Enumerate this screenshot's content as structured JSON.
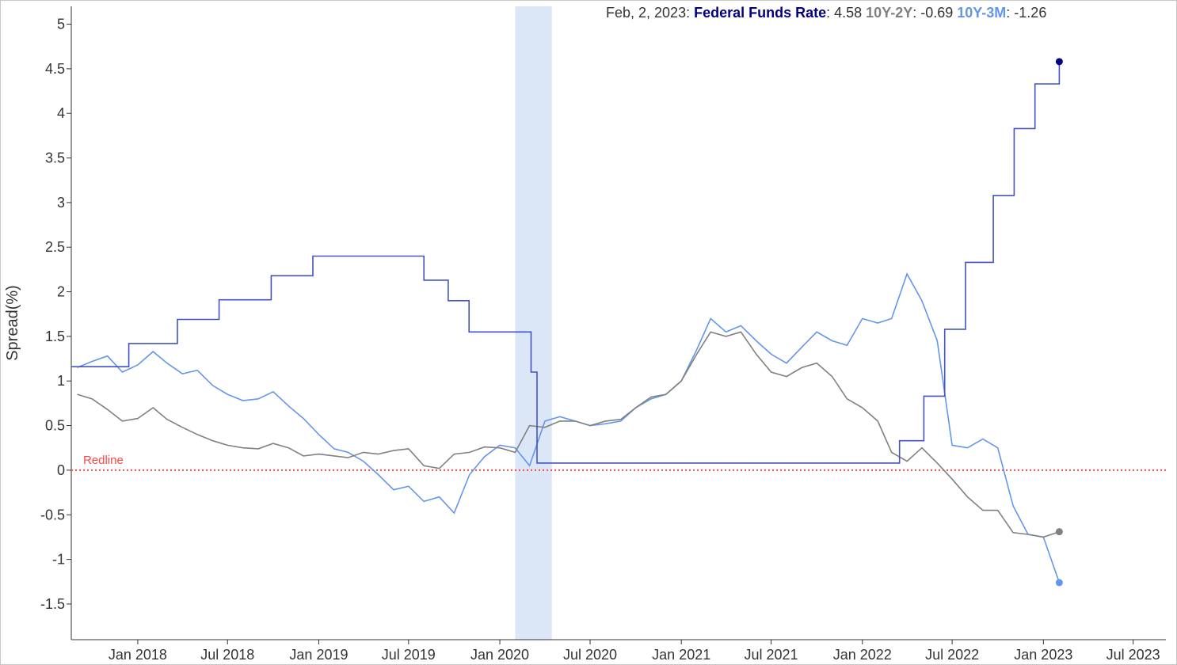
{
  "readout": {
    "date": "Feb, 2, 2023",
    "items": [
      {
        "label": "Federal Funds Rate",
        "value": "4.58",
        "color": "#000080"
      },
      {
        "label": "10Y-2Y",
        "value": "-0.69",
        "color": "#808080"
      },
      {
        "label": "10Y-3M",
        "value": "-1.26",
        "color": "#6495ed"
      }
    ]
  },
  "chart_data": {
    "type": "line",
    "ylabel": "Spread(%)",
    "xlabel": "",
    "ylim": [
      -1.9,
      5.2
    ],
    "xlim": [
      "2017-08-20",
      "2023-09-05"
    ],
    "yticks": [
      -1.5,
      -1,
      -0.5,
      0,
      0.5,
      1,
      1.5,
      2,
      2.5,
      3,
      3.5,
      4,
      4.5,
      5
    ],
    "xticks": [
      {
        "label": "Jan 2018",
        "date": "2018-01-01"
      },
      {
        "label": "Jul 2018",
        "date": "2018-07-01"
      },
      {
        "label": "Jan 2019",
        "date": "2019-01-01"
      },
      {
        "label": "Jul 2019",
        "date": "2019-07-01"
      },
      {
        "label": "Jan 2020",
        "date": "2020-01-01"
      },
      {
        "label": "Jul 2020",
        "date": "2020-07-01"
      },
      {
        "label": "Jan 2021",
        "date": "2021-01-01"
      },
      {
        "label": "Jul 2021",
        "date": "2021-07-01"
      },
      {
        "label": "Jan 2022",
        "date": "2022-01-01"
      },
      {
        "label": "Jul 2022",
        "date": "2022-07-01"
      },
      {
        "label": "Jan 2023",
        "date": "2023-01-01"
      },
      {
        "label": "Jul 2023",
        "date": "2023-07-01"
      }
    ],
    "grid": false,
    "recession_band": {
      "start": "2020-02-01",
      "end": "2020-04-15",
      "color": "#dbe6f6"
    },
    "reference_line": {
      "label": "Redline",
      "y": 0,
      "color": "#ff4444",
      "style": "dotted"
    },
    "series": [
      {
        "name": "10Y-3M",
        "color": "#6495ed",
        "x": [
          "2017-09-01",
          "2017-10-01",
          "2017-11-01",
          "2017-12-01",
          "2018-01-01",
          "2018-02-01",
          "2018-03-01",
          "2018-04-01",
          "2018-05-01",
          "2018-06-01",
          "2018-07-01",
          "2018-08-01",
          "2018-09-01",
          "2018-10-01",
          "2018-11-01",
          "2018-12-01",
          "2019-01-01",
          "2019-02-01",
          "2019-03-01",
          "2019-04-01",
          "2019-05-01",
          "2019-06-01",
          "2019-07-01",
          "2019-08-01",
          "2019-09-01",
          "2019-10-01",
          "2019-11-01",
          "2019-12-01",
          "2020-01-01",
          "2020-02-01",
          "2020-03-01",
          "2020-04-01",
          "2020-05-01",
          "2020-06-01",
          "2020-07-01",
          "2020-08-01",
          "2020-09-01",
          "2020-10-01",
          "2020-11-01",
          "2020-12-01",
          "2021-01-01",
          "2021-02-01",
          "2021-03-01",
          "2021-04-01",
          "2021-05-01",
          "2021-06-01",
          "2021-07-01",
          "2021-08-01",
          "2021-09-01",
          "2021-10-01",
          "2021-11-01",
          "2021-12-01",
          "2022-01-01",
          "2022-02-01",
          "2022-03-01",
          "2022-04-01",
          "2022-05-01",
          "2022-06-01",
          "2022-07-01",
          "2022-08-01",
          "2022-09-01",
          "2022-10-01",
          "2022-11-01",
          "2022-12-01",
          "2023-01-01",
          "2023-02-02"
        ],
        "values": [
          1.15,
          1.22,
          1.28,
          1.1,
          1.18,
          1.33,
          1.2,
          1.08,
          1.12,
          0.95,
          0.85,
          0.78,
          0.8,
          0.88,
          0.72,
          0.58,
          0.4,
          0.24,
          0.2,
          0.1,
          -0.05,
          -0.22,
          -0.18,
          -0.35,
          -0.3,
          -0.48,
          -0.05,
          0.15,
          0.28,
          0.25,
          0.05,
          0.55,
          0.6,
          0.55,
          0.5,
          0.52,
          0.55,
          0.7,
          0.8,
          0.85,
          1.0,
          1.35,
          1.7,
          1.55,
          1.62,
          1.45,
          1.3,
          1.2,
          1.38,
          1.55,
          1.45,
          1.4,
          1.7,
          1.65,
          1.7,
          2.2,
          1.9,
          1.45,
          0.28,
          0.25,
          0.35,
          0.25,
          -0.4,
          -0.72,
          -0.75,
          -1.26
        ]
      },
      {
        "name": "10Y-2Y",
        "color": "#808080",
        "x": [
          "2017-09-01",
          "2017-10-01",
          "2017-11-01",
          "2017-12-01",
          "2018-01-01",
          "2018-02-01",
          "2018-03-01",
          "2018-04-01",
          "2018-05-01",
          "2018-06-01",
          "2018-07-01",
          "2018-08-01",
          "2018-09-01",
          "2018-10-01",
          "2018-11-01",
          "2018-12-01",
          "2019-01-01",
          "2019-02-01",
          "2019-03-01",
          "2019-04-01",
          "2019-05-01",
          "2019-06-01",
          "2019-07-01",
          "2019-08-01",
          "2019-09-01",
          "2019-10-01",
          "2019-11-01",
          "2019-12-01",
          "2020-01-01",
          "2020-02-01",
          "2020-03-01",
          "2020-04-01",
          "2020-05-01",
          "2020-06-01",
          "2020-07-01",
          "2020-08-01",
          "2020-09-01",
          "2020-10-01",
          "2020-11-01",
          "2020-12-01",
          "2021-01-01",
          "2021-02-01",
          "2021-03-01",
          "2021-04-01",
          "2021-05-01",
          "2021-06-01",
          "2021-07-01",
          "2021-08-01",
          "2021-09-01",
          "2021-10-01",
          "2021-11-01",
          "2021-12-01",
          "2022-01-01",
          "2022-02-01",
          "2022-03-01",
          "2022-04-01",
          "2022-05-01",
          "2022-06-01",
          "2022-07-01",
          "2022-08-01",
          "2022-09-01",
          "2022-10-01",
          "2022-11-01",
          "2022-12-01",
          "2023-01-01",
          "2023-02-02"
        ],
        "values": [
          0.85,
          0.8,
          0.68,
          0.55,
          0.58,
          0.7,
          0.57,
          0.48,
          0.4,
          0.33,
          0.28,
          0.25,
          0.24,
          0.3,
          0.25,
          0.16,
          0.18,
          0.16,
          0.14,
          0.2,
          0.18,
          0.22,
          0.24,
          0.05,
          0.02,
          0.18,
          0.2,
          0.26,
          0.25,
          0.2,
          0.5,
          0.48,
          0.55,
          0.55,
          0.5,
          0.55,
          0.57,
          0.7,
          0.82,
          0.85,
          1.0,
          1.3,
          1.55,
          1.5,
          1.55,
          1.3,
          1.1,
          1.05,
          1.15,
          1.2,
          1.05,
          0.8,
          0.7,
          0.55,
          0.2,
          0.1,
          0.25,
          0.08,
          -0.1,
          -0.3,
          -0.45,
          -0.45,
          -0.7,
          -0.72,
          -0.75,
          -0.69
        ]
      },
      {
        "name": "Federal Funds Rate",
        "color": "#4353c4",
        "step": true,
        "x": [
          "2017-08-20",
          "2017-12-14",
          "2018-03-22",
          "2018-06-14",
          "2018-09-27",
          "2018-12-20",
          "2019-08-01",
          "2019-09-19",
          "2019-10-31",
          "2020-03-04",
          "2020-03-16",
          "2022-03-17",
          "2022-05-05",
          "2022-06-16",
          "2022-07-28",
          "2022-09-22",
          "2022-11-03",
          "2022-12-15",
          "2023-02-02"
        ],
        "values": [
          1.16,
          1.42,
          1.69,
          1.91,
          2.18,
          2.4,
          2.13,
          1.9,
          1.55,
          1.1,
          0.08,
          0.33,
          0.83,
          1.58,
          2.33,
          3.08,
          3.83,
          4.33,
          4.58
        ]
      }
    ]
  }
}
